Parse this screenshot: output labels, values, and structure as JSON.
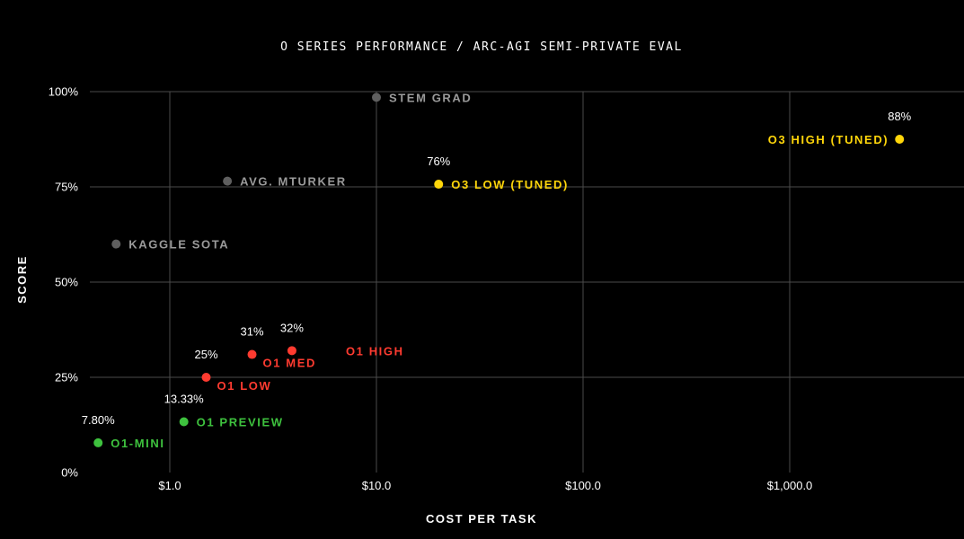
{
  "chart_data": {
    "type": "scatter",
    "title": "O SERIES PERFORMANCE / ARC-AGI SEMI-PRIVATE EVAL",
    "xlabel": "COST PER TASK",
    "ylabel": "SCORE",
    "xscale": "log",
    "xlim": [
      0.5,
      8000
    ],
    "ylim": [
      0,
      100
    ],
    "xticks": [
      {
        "value": 1,
        "label": "$1.0"
      },
      {
        "value": 10,
        "label": "$10.0"
      },
      {
        "value": 100,
        "label": "$100.0"
      },
      {
        "value": 1000,
        "label": "$1,000.0"
      }
    ],
    "yticks": [
      {
        "value": 0,
        "label": "0%"
      },
      {
        "value": 25,
        "label": "25%"
      },
      {
        "value": 50,
        "label": "50%"
      },
      {
        "value": 75,
        "label": "75%"
      },
      {
        "value": 100,
        "label": "100%"
      }
    ],
    "grid": true,
    "colors": {
      "background": "#000000",
      "grid": "#4a4a4a",
      "baseline": "#5f5f5f",
      "o1": "#ff3b30",
      "o1_preview": "#3ec23e",
      "o3": "#ffd60a",
      "text": "#ffffff"
    },
    "points": [
      {
        "name": "STEM GRAD",
        "x": 10,
        "y": 98.5,
        "value_label": "",
        "color": "#5f5f5f",
        "label_color": "#9a9a9a",
        "label_side": "right"
      },
      {
        "name": "AVG. MTURKER",
        "x": 1.9,
        "y": 76.5,
        "value_label": "",
        "color": "#5f5f5f",
        "label_color": "#9a9a9a",
        "label_side": "right"
      },
      {
        "name": "KAGGLE SOTA",
        "x": 0.55,
        "y": 60,
        "value_label": "",
        "color": "#5f5f5f",
        "label_color": "#9a9a9a",
        "label_side": "right"
      },
      {
        "name": "O3 LOW (TUNED)",
        "x": 20,
        "y": 75.7,
        "value_label": "76%",
        "color": "#ffd60a",
        "label_color": "#ffd60a",
        "label_side": "right"
      },
      {
        "name": "O3 HIGH (TUNED)",
        "x": 3400,
        "y": 87.5,
        "value_label": "88%",
        "color": "#ffd60a",
        "label_color": "#ffd60a",
        "label_side": "left"
      },
      {
        "name": "O1 LOW",
        "x": 1.5,
        "y": 25,
        "value_label": "25%",
        "color": "#ff3b30",
        "label_color": "#ff3b30",
        "label_side": "below-right"
      },
      {
        "name": "O1 MED",
        "x": 2.5,
        "y": 31,
        "value_label": "31%",
        "color": "#ff3b30",
        "label_color": "#ff3b30",
        "label_side": "below-right"
      },
      {
        "name": "O1 HIGH",
        "x": 3.9,
        "y": 32,
        "value_label": "32%",
        "color": "#ff3b30",
        "label_color": "#ff3b30",
        "label_side": "far-right"
      },
      {
        "name": "O1 PREVIEW",
        "x": 1.17,
        "y": 13.33,
        "value_label": "13.33%",
        "color": "#3ec23e",
        "label_color": "#3ec23e",
        "label_side": "right"
      },
      {
        "name": "O1-MINI",
        "x": 0.45,
        "y": 7.8,
        "value_label": "7.80%",
        "color": "#3ec23e",
        "label_color": "#3ec23e",
        "label_side": "right"
      }
    ]
  }
}
